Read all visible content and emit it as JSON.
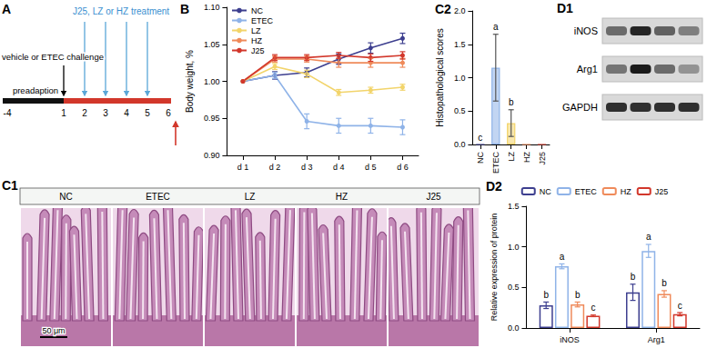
{
  "timeline": {
    "panel": "A",
    "treatment": "J25, LZ or HZ treatment",
    "challenge": "vehicle or ETEC challenge",
    "phase": "preadaption",
    "days": [
      -4,
      1,
      2,
      3,
      4,
      5,
      6
    ],
    "treatment_days": [
      2,
      3,
      4,
      5
    ],
    "challenge_day": 1,
    "sampling_day": 6
  },
  "histology": {
    "panel": "C1",
    "groups": [
      "NC",
      "ETEC",
      "LZ",
      "HZ",
      "J25"
    ],
    "scale_bar": "50 μm"
  },
  "blot": {
    "panel": "D1",
    "proteins": [
      "iNOS",
      "Arg1",
      "GAPDH"
    ]
  },
  "chart_data": [
    {
      "panel": "B",
      "type": "line",
      "y_label": "Body weight, %",
      "categories": [
        "d 1",
        "d 2",
        "d 3",
        "d 4",
        "d 5",
        "d 6"
      ],
      "series": [
        {
          "name": "NC",
          "color": "#3d3f8f",
          "values": [
            1.0,
            1.008,
            1.012,
            1.03,
            1.045,
            1.058
          ],
          "errors": [
            0,
            0.005,
            0.006,
            0.007,
            0.007,
            0.007
          ]
        },
        {
          "name": "ETEC",
          "color": "#8fb3e8",
          "values": [
            1.0,
            1.008,
            0.946,
            0.94,
            0.94,
            0.938
          ],
          "errors": [
            0,
            0.004,
            0.01,
            0.01,
            0.01,
            0.01
          ]
        },
        {
          "name": "LZ",
          "color": "#f2d46b",
          "values": [
            1.0,
            1.02,
            1.01,
            0.985,
            0.988,
            0.992
          ],
          "errors": [
            0,
            0.004,
            0.005,
            0.004,
            0.004,
            0.004
          ]
        },
        {
          "name": "HZ",
          "color": "#ef8a5a",
          "values": [
            1.0,
            1.03,
            1.03,
            1.025,
            1.025,
            1.025
          ],
          "errors": [
            0,
            0.004,
            0.004,
            0.006,
            0.006,
            0.006
          ]
        },
        {
          "name": "J25",
          "color": "#d2372b",
          "values": [
            1.0,
            1.032,
            1.032,
            1.035,
            1.032,
            1.035
          ],
          "errors": [
            0,
            0.004,
            0.004,
            0.004,
            0.005,
            0.005
          ]
        }
      ],
      "ylim": [
        0.9,
        1.1
      ],
      "yticks": [
        {
          "value": 0.9,
          "label": "0.90"
        },
        0.95,
        {
          "value": 1,
          "label": "1.00"
        },
        1.05,
        {
          "value": 1.1,
          "label": "1.10"
        }
      ],
      "grid": false,
      "legend": "top-left",
      "marker": "circle"
    },
    {
      "panel": "C2",
      "type": "bar",
      "y_label": "Histopathological scores",
      "categories": [
        "NC",
        "ETEC",
        "LZ",
        "HZ",
        "J25"
      ],
      "values": [
        0,
        1.15,
        0.32,
        0,
        0
      ],
      "errors": [
        0,
        0.5,
        0.2,
        0,
        0
      ],
      "letters": [
        "c",
        "a",
        "b",
        null,
        null
      ],
      "colors": [
        "#3d3f8f",
        "#8fb3e8",
        "#f2d46b",
        "#ef8a5a",
        "#d2372b"
      ],
      "ylim": [
        0,
        2
      ],
      "yticks": [
        {
          "value": 0,
          "label": "0.0"
        },
        0.5,
        {
          "value": 1,
          "label": "1.0"
        },
        1.5,
        {
          "value": 2,
          "label": "2.0"
        }
      ],
      "grid": false
    },
    {
      "panel": "D2",
      "type": "bar",
      "y_label": "Relative expression of protein",
      "categories": [
        "iNOS",
        "Arg1"
      ],
      "series": [
        {
          "name": "NC",
          "color": "#3d3f8f",
          "values": [
            0.28,
            0.44
          ],
          "errors": [
            0.04,
            0.1
          ],
          "letters": [
            "b",
            "b"
          ]
        },
        {
          "name": "ETEC",
          "color": "#8fb3e8",
          "values": [
            0.76,
            0.95
          ],
          "errors": [
            0.03,
            0.08
          ],
          "letters": [
            "a",
            "a"
          ]
        },
        {
          "name": "HZ",
          "color": "#ef8a5a",
          "values": [
            0.29,
            0.42
          ],
          "errors": [
            0.03,
            0.04
          ],
          "letters": [
            "b",
            "b"
          ]
        },
        {
          "name": "J25",
          "color": "#d2372b",
          "values": [
            0.15,
            0.17
          ],
          "errors": [
            0.01,
            0.02
          ],
          "letters": [
            "c",
            "c"
          ]
        }
      ],
      "ylim": [
        0,
        1.5
      ],
      "yticks": [
        {
          "value": 0,
          "label": "0.0"
        },
        0.5,
        {
          "value": 1,
          "label": "1.0"
        },
        1.5
      ],
      "grid": false,
      "legend": "top"
    }
  ]
}
